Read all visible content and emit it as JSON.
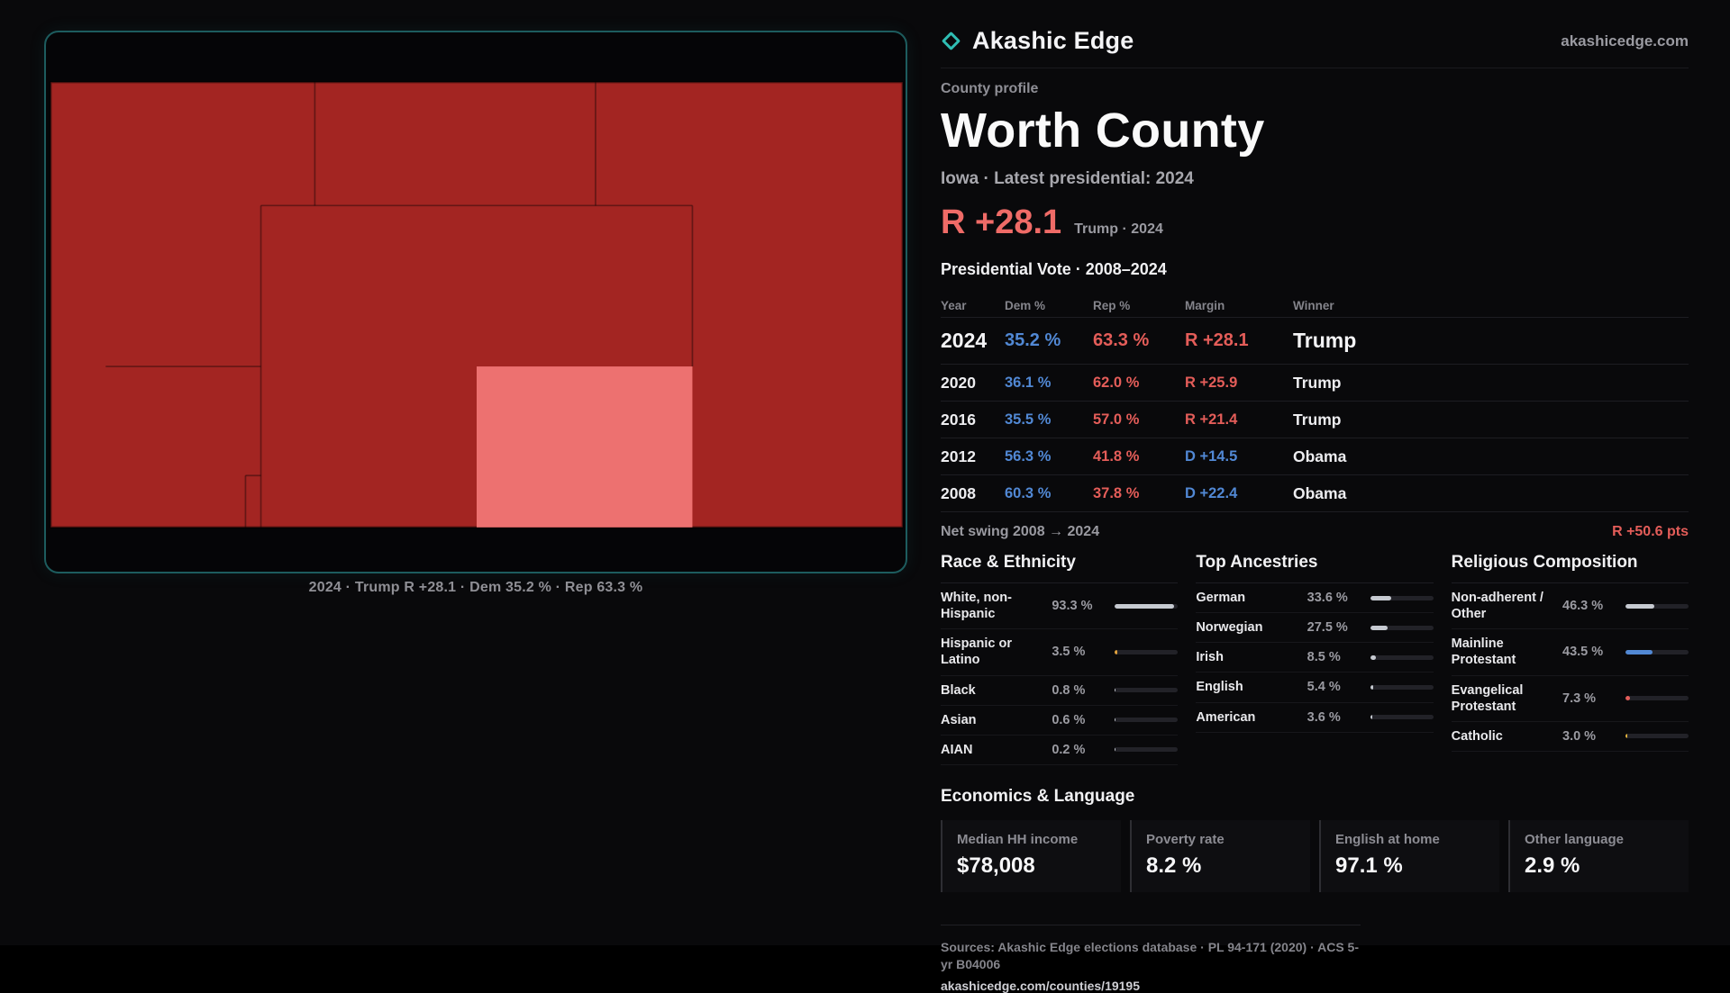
{
  "colors": {
    "red": "#e45d59",
    "blue": "#5188d4",
    "teal": "#2fbdb3",
    "map_red": "#a32522",
    "map_highlight": "#ed7170"
  },
  "header": {
    "brand": "Akashic Edge",
    "site": "akashicedge.com"
  },
  "map": {
    "caption": "2024 · Trump R +28.1 · Dem 35.2 % · Rep 63.3 %"
  },
  "profile": {
    "eyebrow": "County profile",
    "title": "Worth County",
    "subtitle": "Iowa · Latest presidential: 2024",
    "lean": "R +28.1",
    "lean_note": "Trump · 2024"
  },
  "votes": {
    "title": "Presidential Vote · 2008–2024",
    "columns": [
      "Year",
      "Dem %",
      "Rep %",
      "Margin",
      "Winner"
    ],
    "rows": [
      {
        "year": "2024",
        "dem": "35.2 %",
        "rep": "63.3 %",
        "margin": "R +28.1",
        "winner": "Trump",
        "margin_color": "#e45d59"
      },
      {
        "year": "2020",
        "dem": "36.1 %",
        "rep": "62.0 %",
        "margin": "R +25.9",
        "winner": "Trump",
        "margin_color": "#e45d59"
      },
      {
        "year": "2016",
        "dem": "35.5 %",
        "rep": "57.0 %",
        "margin": "R +21.4",
        "winner": "Trump",
        "margin_color": "#e45d59"
      },
      {
        "year": "2012",
        "dem": "56.3 %",
        "rep": "41.8 %",
        "margin": "D +14.5",
        "winner": "Obama",
        "margin_color": "#5188d4"
      },
      {
        "year": "2008",
        "dem": "60.3 %",
        "rep": "37.8 %",
        "margin": "D +22.4",
        "winner": "Obama",
        "margin_color": "#5188d4"
      }
    ],
    "swing_label": "Net swing 2008 → 2024",
    "swing_value": "R +50.6 pts"
  },
  "race": {
    "title": "Race & Ethnicity",
    "rows": [
      {
        "label": "White, non-Hispanic",
        "value": "93.3 %",
        "pct": 93.3,
        "color": "#c6cad1"
      },
      {
        "label": "Hispanic or Latino",
        "value": "3.5 %",
        "pct": 3.5,
        "color": "#e2a23d"
      },
      {
        "label": "Black",
        "value": "0.8 %",
        "pct": 0.8,
        "color": "#c6cad1"
      },
      {
        "label": "Asian",
        "value": "0.6 %",
        "pct": 0.6,
        "color": "#c6cad1"
      },
      {
        "label": "AIAN",
        "value": "0.2 %",
        "pct": 0.2,
        "color": "#c6cad1"
      }
    ]
  },
  "ancestries": {
    "title": "Top Ancestries",
    "rows": [
      {
        "label": "German",
        "value": "33.6 %",
        "pct": 33.6,
        "color": "#c6cad1"
      },
      {
        "label": "Norwegian",
        "value": "27.5 %",
        "pct": 27.5,
        "color": "#c6cad1"
      },
      {
        "label": "Irish",
        "value": "8.5 %",
        "pct": 8.5,
        "color": "#c6cad1"
      },
      {
        "label": "English",
        "value": "5.4 %",
        "pct": 5.4,
        "color": "#c6cad1"
      },
      {
        "label": "American",
        "value": "3.6 %",
        "pct": 3.6,
        "color": "#c6cad1"
      }
    ]
  },
  "religion": {
    "title": "Religious Composition",
    "rows": [
      {
        "label": "Non-adherent / Other",
        "value": "46.3 %",
        "pct": 46.3,
        "color": "#c6cad1"
      },
      {
        "label": "Mainline Protestant",
        "value": "43.5 %",
        "pct": 43.5,
        "color": "#5188d4"
      },
      {
        "label": "Evangelical Protestant",
        "value": "7.3 %",
        "pct": 7.3,
        "color": "#e45d59"
      },
      {
        "label": "Catholic",
        "value": "3.0 %",
        "pct": 3.0,
        "color": "#e2b43d"
      }
    ]
  },
  "economics": {
    "title": "Economics & Language",
    "stats": [
      {
        "label": "Median HH income",
        "value": "$78,008"
      },
      {
        "label": "Poverty rate",
        "value": "8.2 %"
      },
      {
        "label": "English at home",
        "value": "97.1 %"
      },
      {
        "label": "Other language",
        "value": "2.9 %"
      }
    ]
  },
  "footer": {
    "sources": "Sources: Akashic Edge elections database · PL 94-171 (2020) · ACS 5-yr B04006",
    "permalink": "akashicedge.com/counties/19195"
  }
}
